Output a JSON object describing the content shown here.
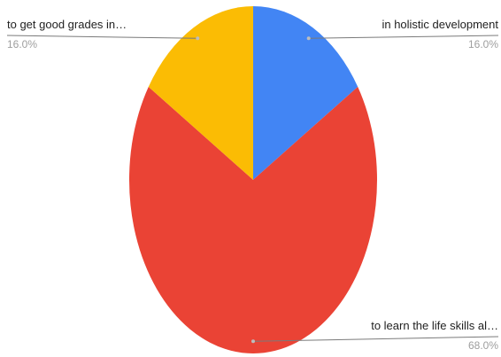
{
  "chart_data": {
    "type": "pie",
    "slices": [
      {
        "label": "in holistic development",
        "value": 16.0,
        "value_label": "16.0%",
        "color": "#4285f4"
      },
      {
        "label": "to learn the life skills al…",
        "value": 68.0,
        "value_label": "68.0%",
        "color": "#ea4335"
      },
      {
        "label": "to get good grades in…",
        "value": 16.0,
        "value_label": "16.0%",
        "color": "#fbbc04"
      }
    ],
    "start_angle": "12 o'clock",
    "direction": "clockwise",
    "legend": "none",
    "label_placement": "outside with leader lines"
  }
}
